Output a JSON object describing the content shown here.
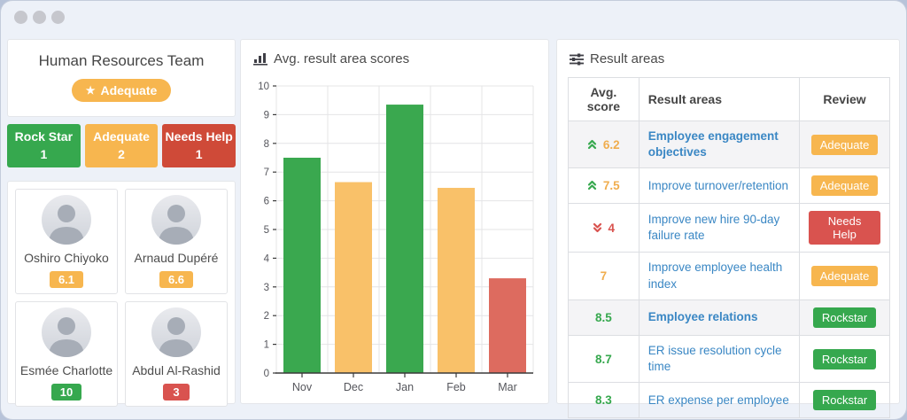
{
  "colors": {
    "green": "#36a84e",
    "orange": "#f0ad4e",
    "orange_badge": "#f7b64f",
    "red": "#d9534f",
    "red_box": "#cf4a38",
    "bar_green": "#3aa84f",
    "bar_orange": "#f9c169",
    "bar_red": "#dd6b5f",
    "blue_link": "#3a87c4"
  },
  "team_panel": {
    "title": "Human Resources Team",
    "badge_label": "Adequate",
    "stats": [
      {
        "label": "Rock Star",
        "count": "1",
        "color": "#36a84e"
      },
      {
        "label": "Adequate",
        "count": "2",
        "color": "#f7b64f"
      },
      {
        "label": "Needs Help",
        "count": "1",
        "color": "#cf4a38"
      }
    ]
  },
  "members": [
    {
      "name": "Oshiro Chiyoko",
      "score": "6.1",
      "score_color": "#f7b64f"
    },
    {
      "name": "Arnaud Dupéré",
      "score": "6.6",
      "score_color": "#f7b64f"
    },
    {
      "name": "Esmée Charlotte",
      "score": "10",
      "score_color": "#36a84e"
    },
    {
      "name": "Abdul Al-Rashid",
      "score": "3",
      "score_color": "#d9534f"
    }
  ],
  "chart_panel": {
    "title": "Avg. result area scores"
  },
  "chart_data": {
    "type": "bar",
    "title": "Avg. result area scores",
    "categories": [
      "Nov",
      "Dec",
      "Jan",
      "Feb",
      "Mar"
    ],
    "values": [
      7.5,
      6.65,
      9.35,
      6.45,
      3.3
    ],
    "bar_colors": [
      "#3aa84f",
      "#f9c169",
      "#3aa84f",
      "#f9c169",
      "#dd6b5f"
    ],
    "xlabel": "",
    "ylabel": "",
    "ylim": [
      0,
      10
    ],
    "ytick_step": 1,
    "grid": true,
    "legend": false
  },
  "result_areas_panel": {
    "title": "Result areas",
    "table": {
      "headers": [
        "Avg. score",
        "Result areas",
        "Review"
      ],
      "rows": [
        {
          "score": "6.2",
          "trend": "up",
          "score_color": "#f0ad4e",
          "area": "Employee engagement objectives",
          "header_row": true,
          "review": "Adequate",
          "review_color": "#f7b64f"
        },
        {
          "score": "7.5",
          "trend": "up",
          "score_color": "#f0ad4e",
          "area": "Improve turnover/retention",
          "header_row": false,
          "review": "Adequate",
          "review_color": "#f7b64f"
        },
        {
          "score": "4",
          "trend": "down",
          "score_color": "#d9534f",
          "area": "Improve new hire 90-day failure rate",
          "header_row": false,
          "review": "Needs Help",
          "review_color": "#d9534f"
        },
        {
          "score": "7",
          "trend": "none",
          "score_color": "#f0ad4e",
          "area": "Improve employee health index",
          "header_row": false,
          "review": "Adequate",
          "review_color": "#f7b64f"
        },
        {
          "score": "8.5",
          "trend": "none",
          "score_color": "#36a84e",
          "area": "Employee relations",
          "header_row": true,
          "review": "Rockstar",
          "review_color": "#36a84e"
        },
        {
          "score": "8.7",
          "trend": "none",
          "score_color": "#36a84e",
          "area": "ER issue resolution cycle time",
          "header_row": false,
          "review": "Rockstar",
          "review_color": "#36a84e"
        },
        {
          "score": "8.3",
          "trend": "none",
          "score_color": "#36a84e",
          "area": "ER expense per employee",
          "header_row": false,
          "review": "Rockstar",
          "review_color": "#36a84e"
        }
      ]
    }
  }
}
